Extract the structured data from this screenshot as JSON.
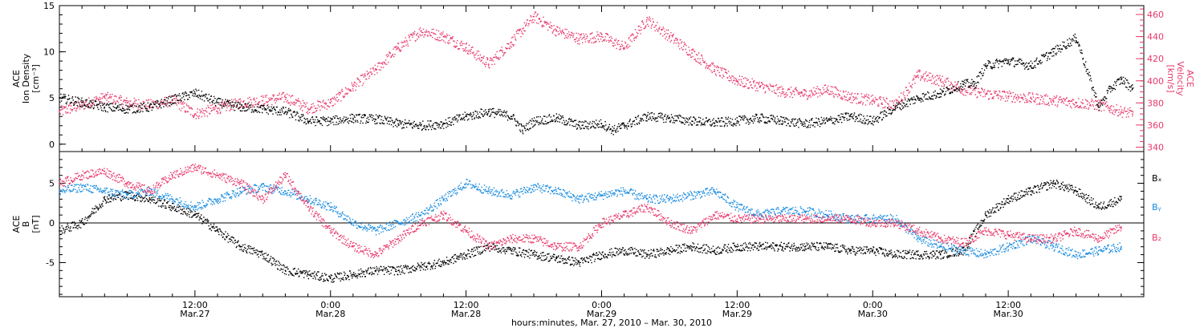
{
  "colors": {
    "black_series": "#000000",
    "red_series": "#e8386a",
    "blue_series": "#1a8ce0",
    "axis": "#000000"
  },
  "chart_data": [
    {
      "type": "scatter",
      "panel": "top",
      "ylabel_left": [
        "ACE",
        "Ion Density",
        "[cm⁻³]"
      ],
      "ylabel_right": [
        "ACE",
        "Velocity",
        "[km/s]"
      ],
      "ylim_left": [
        -0.8,
        15
      ],
      "ylim_right": [
        336,
        468
      ],
      "yticks_left": [
        0,
        5,
        10,
        15
      ],
      "yticks_right": [
        340,
        360,
        380,
        400,
        420,
        440,
        460
      ],
      "xlim_hours": [
        0,
        96
      ],
      "series": [
        {
          "name": "Ion Density",
          "axis": "left",
          "color": "black_series",
          "x": [
            0,
            2,
            4,
            6,
            8,
            10,
            12,
            14,
            16,
            18,
            20,
            22,
            24,
            26,
            28,
            30,
            32,
            34,
            36,
            38,
            40,
            41,
            42,
            44,
            46,
            48,
            49,
            50,
            52,
            54,
            56,
            58,
            60,
            62,
            64,
            66,
            68,
            70,
            72,
            74,
            76,
            78,
            80,
            81,
            82,
            84,
            86,
            88,
            90,
            92,
            93,
            94,
            95
          ],
          "y": [
            5.0,
            4.5,
            4.0,
            3.8,
            4.0,
            4.8,
            5.5,
            4.5,
            4.0,
            3.8,
            3.5,
            2.5,
            2.5,
            2.8,
            2.7,
            2.2,
            2.0,
            2.2,
            3.0,
            3.5,
            3.0,
            1.5,
            2.5,
            2.8,
            2.0,
            2.2,
            1.5,
            2.0,
            3.0,
            2.8,
            2.5,
            2.3,
            2.5,
            2.8,
            2.5,
            2.2,
            2.5,
            3.0,
            2.5,
            4.0,
            5.0,
            5.5,
            6.5,
            6.5,
            8.5,
            9.0,
            8.5,
            10.0,
            11.5,
            4.0,
            6.0,
            7.0,
            6.0
          ]
        },
        {
          "name": "Velocity",
          "axis": "right",
          "color": "red_series",
          "x": [
            0,
            2,
            4,
            6,
            8,
            10,
            12,
            14,
            16,
            18,
            20,
            22,
            24,
            26,
            28,
            30,
            32,
            34,
            36,
            38,
            40,
            42,
            44,
            46,
            48,
            50,
            52,
            54,
            56,
            58,
            60,
            62,
            64,
            66,
            68,
            70,
            72,
            74,
            76,
            78,
            80,
            82,
            84,
            86,
            88,
            90,
            92,
            93,
            94,
            95
          ],
          "y": [
            372,
            378,
            385,
            380,
            378,
            382,
            370,
            375,
            380,
            382,
            385,
            375,
            380,
            395,
            410,
            430,
            445,
            440,
            430,
            415,
            435,
            458,
            445,
            438,
            440,
            430,
            455,
            440,
            425,
            410,
            400,
            395,
            390,
            388,
            392,
            385,
            382,
            378,
            405,
            400,
            392,
            388,
            386,
            384,
            382,
            380,
            378,
            375,
            372,
            370
          ]
        }
      ]
    },
    {
      "type": "scatter",
      "panel": "bottom",
      "ylabel_left": [
        "ACE",
        "B",
        "[nT]"
      ],
      "ylim": [
        -9.3,
        9
      ],
      "yticks": [
        -5,
        0,
        5
      ],
      "xlim_hours": [
        0,
        96
      ],
      "legend_labels": [
        "Bₓ",
        "Bᵧ",
        "B₂"
      ],
      "series": [
        {
          "name": "Bx",
          "color": "black_series",
          "x": [
            0,
            2,
            4,
            6,
            8,
            10,
            12,
            14,
            16,
            18,
            20,
            22,
            24,
            26,
            28,
            30,
            32,
            34,
            36,
            38,
            40,
            42,
            44,
            46,
            48,
            50,
            52,
            54,
            56,
            58,
            60,
            62,
            64,
            66,
            68,
            70,
            72,
            74,
            76,
            78,
            80,
            82,
            84,
            86,
            88,
            90,
            92,
            94
          ],
          "y": [
            -1,
            0,
            3,
            3.5,
            3,
            2,
            1,
            -1,
            -3,
            -4,
            -6,
            -6.5,
            -7,
            -6.5,
            -6,
            -6,
            -5.5,
            -5,
            -4,
            -3,
            -3.5,
            -4,
            -4.5,
            -5,
            -4,
            -3.5,
            -4,
            -3.5,
            -3,
            -3.5,
            -3,
            -3,
            -3,
            -3,
            -3,
            -3.5,
            -3.5,
            -4,
            -4,
            -4,
            -3.5,
            1,
            3,
            4,
            5,
            4,
            2,
            3
          ]
        },
        {
          "name": "By",
          "color": "blue_series",
          "x": [
            0,
            2,
            4,
            6,
            8,
            10,
            12,
            14,
            16,
            18,
            20,
            22,
            24,
            26,
            28,
            30,
            32,
            34,
            36,
            38,
            40,
            42,
            44,
            46,
            48,
            50,
            52,
            54,
            56,
            58,
            60,
            62,
            64,
            66,
            68,
            70,
            72,
            74,
            76,
            78,
            80,
            82,
            84,
            86,
            88,
            90,
            92,
            94
          ],
          "y": [
            4,
            4.5,
            4,
            3.5,
            4,
            3,
            2,
            3,
            4,
            4.5,
            4,
            3,
            2,
            0,
            -1,
            0,
            1,
            3,
            5,
            4,
            3.5,
            4.5,
            4,
            3,
            3.5,
            4,
            3,
            3,
            3.5,
            4,
            2,
            1,
            1.5,
            1.5,
            1,
            0.5,
            0.5,
            0.5,
            -2,
            -3,
            -3.5,
            -4,
            -3,
            -2,
            -3,
            -4,
            -3.5,
            -3
          ]
        },
        {
          "name": "Bz",
          "color": "red_series",
          "x": [
            0,
            2,
            4,
            6,
            8,
            10,
            12,
            14,
            16,
            18,
            20,
            22,
            24,
            26,
            28,
            30,
            32,
            34,
            36,
            38,
            40,
            42,
            44,
            46,
            48,
            50,
            52,
            54,
            56,
            58,
            60,
            62,
            64,
            66,
            68,
            70,
            72,
            74,
            76,
            78,
            80,
            82,
            84,
            86,
            88,
            90,
            92,
            94
          ],
          "y": [
            5,
            6,
            6.5,
            5,
            4,
            6,
            7,
            6,
            5,
            3,
            6,
            2,
            -1,
            -3,
            -4,
            -2,
            0,
            1,
            -1,
            -3,
            -2,
            -2,
            -3,
            -3,
            0,
            1,
            2,
            0,
            -1,
            1,
            0.5,
            0.5,
            0.5,
            0.5,
            0.5,
            0.5,
            0,
            0,
            -1,
            -2,
            -2.5,
            -1,
            -1.5,
            -2,
            -2,
            -1,
            -2,
            -0.5
          ]
        }
      ]
    }
  ],
  "x_axis": {
    "ticks": [
      {
        "hours": 12,
        "time": "12:00",
        "date": "Mar.27"
      },
      {
        "hours": 24,
        "time": "0:00",
        "date": "Mar.28"
      },
      {
        "hours": 36,
        "time": "12:00",
        "date": "Mar.28"
      },
      {
        "hours": 48,
        "time": "0:00",
        "date": "Mar.29"
      },
      {
        "hours": 60,
        "time": "12:00",
        "date": "Mar.29"
      },
      {
        "hours": 72,
        "time": "0:00",
        "date": "Mar.30"
      },
      {
        "hours": 84,
        "time": "12:00",
        "date": "Mar.30"
      }
    ],
    "title": "hours:minutes, Mar. 27, 2010 – Mar. 30, 2010"
  }
}
